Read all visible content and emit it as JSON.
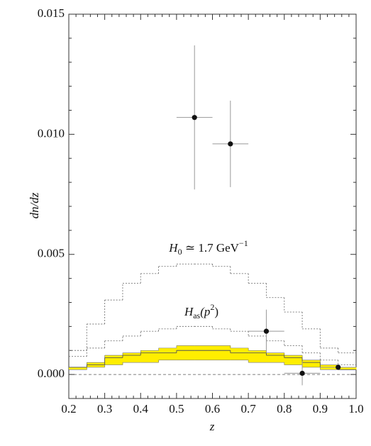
{
  "chart_data": {
    "type": "step",
    "xlabel": "z",
    "ylabel": "dn/dz",
    "xlim": [
      0.2,
      1.0
    ],
    "ylim": [
      -0.001,
      0.015
    ],
    "xticks": [
      0.2,
      0.3,
      0.4,
      0.5,
      0.6,
      0.7,
      0.8,
      0.9,
      {
        "value": 1.0,
        "label": "1.0"
      }
    ],
    "yticks": [
      {
        "value": 0,
        "label": "0.000"
      },
      {
        "value": 0.005,
        "label": "0.005"
      },
      {
        "value": 0.01,
        "label": "0.010"
      },
      {
        "value": 0.015,
        "label": "0.015"
      }
    ],
    "bins": [
      0.2,
      0.25,
      0.3,
      0.35,
      0.4,
      0.45,
      0.5,
      0.55,
      0.6,
      0.65,
      0.7,
      0.75,
      0.8,
      0.85,
      0.9,
      0.95,
      1.0
    ],
    "band_color": "#ffee00",
    "band_upper": [
      0.0003,
      0.0005,
      0.0008,
      0.0009,
      0.001,
      0.0011,
      0.0012,
      0.0012,
      0.0012,
      0.0011,
      0.001,
      0.0009,
      0.0008,
      0.0006,
      0.0004,
      0.0003
    ],
    "band_lower": [
      0.0002,
      0.0003,
      0.0004,
      0.0005,
      0.0005,
      0.0006,
      0.0006,
      0.0006,
      0.0006,
      0.0006,
      0.0005,
      0.0005,
      0.0004,
      0.0003,
      0.0002,
      0.0002
    ],
    "histograms": [
      {
        "values": [
          0.0003,
          0.0004,
          0.0007,
          0.0008,
          0.0009,
          0.0009,
          0.001,
          0.001,
          0.001,
          0.0009,
          0.0009,
          0.0008,
          0.0007,
          0.0005,
          0.0003,
          0.0002
        ],
        "color": "#555555",
        "dash": "none"
      },
      {
        "values": [
          0.001,
          0.0021,
          0.0031,
          0.0038,
          0.0042,
          0.0045,
          0.0046,
          0.0046,
          0.0045,
          0.0042,
          0.0038,
          0.0032,
          0.0026,
          0.0019,
          0.0011,
          0.0009
        ],
        "color": "#777777",
        "dash": "2 2"
      },
      {
        "values": [
          0.00075,
          0.0011,
          0.0014,
          0.0016,
          0.0018,
          0.0019,
          0.002,
          0.002,
          0.0019,
          0.0018,
          0.0016,
          0.0014,
          0.0012,
          0.0009,
          0.0006,
          0.0004
        ],
        "color": "#777777",
        "dash": "2 2"
      }
    ],
    "points": {
      "x": [
        0.55,
        0.65,
        0.75,
        0.85,
        0.95
      ],
      "y": [
        0.0107,
        0.0096,
        0.0018,
        5e-05,
        0.0003
      ],
      "xerr": [
        0.05,
        0.05,
        0.05,
        0.05,
        0.05
      ],
      "yerr": [
        0.003,
        0.0018,
        0.0009,
        0.0005,
        0.0001
      ],
      "color": "#111111"
    },
    "annotations": [
      {
        "parts": [
          "H",
          "0",
          " ≃ 1.7 GeV",
          "−1"
        ]
      },
      {
        "parts": [
          "H",
          "as",
          "(p",
          "2",
          ")"
        ]
      }
    ]
  }
}
